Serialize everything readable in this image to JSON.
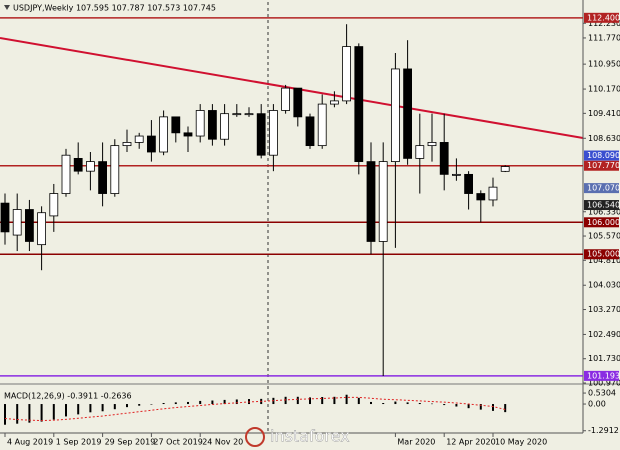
{
  "chart_data": [
    {
      "type": "candlestick",
      "title": "USDJPY,Weekly 107.595 107.787 107.573 107.745",
      "categories": [
        "4 Aug 2019",
        null,
        null,
        null,
        "1 Sep 2019",
        null,
        null,
        null,
        "29 Sep 2019",
        null,
        null,
        null,
        "27 Oct 2019",
        null,
        null,
        null,
        "24 Nov 20",
        null,
        null,
        null,
        null,
        null,
        null,
        null,
        null,
        null,
        null,
        null,
        null,
        null,
        null,
        null,
        "Mar 2020",
        null,
        null,
        null,
        "12 Apr 2020",
        null,
        null,
        null,
        "10 May 2020",
        null
      ],
      "open": [
        106.6,
        105.6,
        106.4,
        105.3,
        106.2,
        106.9,
        108.0,
        107.6,
        107.9,
        106.9,
        108.4,
        108.5,
        108.7,
        108.2,
        109.3,
        108.8,
        108.7,
        109.5,
        108.6,
        109.4,
        109.4,
        109.4,
        108.1,
        109.5,
        110.2,
        109.3,
        108.4,
        109.7,
        109.8,
        111.5,
        107.9,
        105.4,
        107.9,
        110.8,
        108.0,
        108.4,
        108.5,
        107.5,
        107.5,
        106.9,
        106.7,
        107.595
      ],
      "high": [
        106.9,
        106.9,
        106.7,
        106.5,
        107.2,
        108.3,
        108.5,
        108.2,
        108.5,
        108.6,
        108.9,
        108.8,
        109.2,
        109.5,
        109.3,
        109.0,
        109.7,
        109.7,
        109.7,
        109.7,
        109.6,
        109.7,
        109.7,
        110.3,
        110.2,
        109.4,
        110.0,
        110.1,
        112.2,
        111.6,
        108.5,
        108.5,
        111.3,
        111.7,
        109.4,
        109.4,
        109.4,
        108.0,
        107.6,
        107.0,
        107.4,
        107.787
      ],
      "low": [
        105.3,
        105.1,
        105.1,
        104.5,
        105.7,
        106.8,
        107.5,
        107.0,
        106.5,
        106.8,
        108.2,
        108.3,
        107.9,
        108.1,
        108.5,
        108.2,
        108.5,
        108.4,
        108.4,
        109.3,
        109.3,
        108.0,
        107.6,
        109.4,
        109.0,
        108.3,
        108.3,
        109.6,
        109.7,
        107.5,
        105.0,
        101.19,
        105.2,
        107.8,
        106.9,
        107.9,
        107.0,
        107.3,
        106.4,
        106.0,
        106.5,
        107.573
      ],
      "close": [
        105.7,
        106.4,
        105.4,
        106.3,
        106.9,
        108.1,
        107.6,
        107.9,
        106.9,
        108.4,
        108.5,
        108.7,
        108.2,
        109.3,
        108.8,
        108.7,
        109.5,
        108.6,
        109.4,
        109.4,
        109.4,
        108.1,
        109.5,
        110.2,
        109.3,
        108.4,
        109.7,
        109.8,
        111.5,
        107.9,
        105.4,
        107.9,
        110.8,
        108.0,
        108.4,
        108.5,
        107.5,
        107.5,
        106.9,
        106.7,
        107.1,
        107.745
      ],
      "up_color": "#ffffff",
      "down_color": "#000000",
      "ylim": [
        100.97,
        112.77
      ],
      "yticks": [
        {
          "value": 112.23,
          "label": "112.230"
        },
        {
          "value": 111.77,
          "label": "111.770"
        },
        {
          "value": 110.95,
          "label": "110.950"
        },
        {
          "value": 110.17,
          "label": "110.170"
        },
        {
          "value": 109.41,
          "label": "109.410"
        },
        {
          "value": 108.63,
          "label": "108.630"
        },
        {
          "value": 106.33,
          "label": "106.330"
        },
        {
          "value": 105.57,
          "label": "105.570"
        },
        {
          "value": 104.81,
          "label": "104.810"
        },
        {
          "value": 104.03,
          "label": "104.030"
        },
        {
          "value": 103.27,
          "label": "103.270"
        },
        {
          "value": 102.49,
          "label": "102.490"
        },
        {
          "value": 101.73,
          "label": "101.730"
        },
        {
          "value": 100.97,
          "label": "100.970"
        }
      ],
      "levels": [
        {
          "value": 112.4,
          "label": "112.400",
          "color": "#b22222",
          "line": true
        },
        {
          "value": 108.09,
          "label": "108.090",
          "color": "#3a4fd0",
          "line": false
        },
        {
          "value": 107.77,
          "label": "107.770",
          "color": "#b22222",
          "line": true
        },
        {
          "value": 107.07,
          "label": "107.070",
          "color": "#5a6fb0",
          "line": false
        },
        {
          "value": 106.54,
          "label": "106.540",
          "color": "#222222",
          "line": false
        },
        {
          "value": 106,
          "label": "106.000",
          "color": "#8b0000",
          "line": true
        },
        {
          "value": 105,
          "label": "105.000",
          "color": "#8b0000",
          "line": true
        },
        {
          "value": 101.193,
          "label": "101.193",
          "color": "#8a2be2",
          "line": true
        }
      ],
      "watermark": "instaforex"
    },
    {
      "type": "bar",
      "title": "MACD(12,26,9) -0.3911 -0.2636",
      "values": [
        -1.0,
        -0.95,
        -0.9,
        -0.85,
        -0.75,
        -0.6,
        -0.5,
        -0.4,
        -0.35,
        -0.25,
        -0.15,
        -0.08,
        -0.02,
        0.05,
        0.08,
        0.1,
        0.15,
        0.17,
        0.2,
        0.22,
        0.24,
        0.25,
        0.3,
        0.35,
        0.35,
        0.32,
        0.34,
        0.35,
        0.45,
        0.3,
        0.1,
        0.05,
        0.12,
        0.08,
        0.05,
        0.02,
        -0.05,
        -0.12,
        -0.2,
        -0.27,
        -0.33,
        -0.3911
      ],
      "color": "#000000",
      "signal": [
        -0.7,
        -0.75,
        -0.78,
        -0.8,
        -0.78,
        -0.74,
        -0.69,
        -0.63,
        -0.58,
        -0.51,
        -0.44,
        -0.37,
        -0.3,
        -0.23,
        -0.17,
        -0.12,
        -0.07,
        -0.02,
        0.02,
        0.06,
        0.1,
        0.13,
        0.16,
        0.2,
        0.23,
        0.25,
        0.27,
        0.29,
        0.32,
        0.32,
        0.28,
        0.23,
        0.21,
        0.18,
        0.15,
        0.12,
        0.09,
        0.05,
        0.0,
        -0.06,
        -0.12,
        -0.2636
      ],
      "signal_color": "#e02020",
      "ylim": [
        -1.4,
        0.92
      ],
      "yticks": [
        0.5304,
        {
          "value": 0,
          "label": "0.00"
        },
        -1.2912
      ]
    }
  ]
}
